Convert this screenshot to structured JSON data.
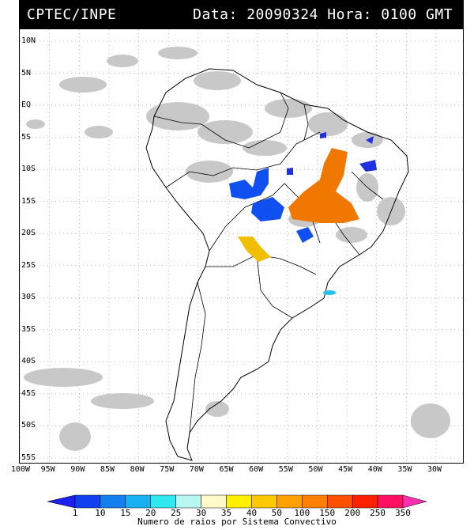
{
  "header": {
    "source": "CPTEC/INPE",
    "data_label": "Data:",
    "date": "20090324",
    "hora_label": "Hora:",
    "time": "0100",
    "tz": "GMT"
  },
  "map": {
    "lat_labels": [
      "10N",
      "5N",
      "EQ",
      "5S",
      "10S",
      "15S",
      "20S",
      "25S",
      "30S",
      "35S",
      "40S",
      "45S",
      "50S",
      "55S"
    ],
    "lon_labels": [
      "100W",
      "95W",
      "90W",
      "85W",
      "80W",
      "75W",
      "70W",
      "65W",
      "60W",
      "55W",
      "50W",
      "45W",
      "40W",
      "35W",
      "30W"
    ],
    "lat_values": [
      10,
      5,
      0,
      -5,
      -10,
      -15,
      -20,
      -25,
      -30,
      -35,
      -40,
      -45,
      -50,
      -55
    ],
    "lon_values": [
      -100,
      -95,
      -90,
      -85,
      -80,
      -75,
      -70,
      -65,
      -60,
      -55,
      -50,
      -45,
      -40,
      -35,
      -30
    ],
    "gridline_style": "dotted",
    "land_outline_color": "#000000",
    "cloud_color": "#c8c8c8",
    "systems": [
      {
        "color": "#f07800",
        "bin": "150-200",
        "region": "central-brazil-east"
      },
      {
        "color": "#1050f0",
        "bin": "1-10",
        "region": "mato-grosso"
      },
      {
        "color": "#1050f0",
        "bin": "1-10",
        "region": "goias-west"
      },
      {
        "color": "#1050f0",
        "bin": "1-10",
        "region": "mato-grosso-sul"
      },
      {
        "color": "#1e30e0",
        "bin": "1",
        "region": "nordeste"
      },
      {
        "color": "#f0c000",
        "bin": "40-50",
        "region": "paraguay"
      },
      {
        "color": "#20c0f0",
        "bin": "20",
        "region": "rio-grande-do-sul-coast"
      }
    ]
  },
  "legend": {
    "title": "Numero de raios por Sistema Convectivo",
    "values": [
      "1",
      "10",
      "15",
      "20",
      "25",
      "30",
      "35",
      "40",
      "50",
      "100",
      "150",
      "200",
      "250",
      "350"
    ],
    "colors": [
      "#1e20f0",
      "#1040f0",
      "#1480f0",
      "#18b0f0",
      "#30e8f0",
      "#b8f8f0",
      "#fffac8",
      "#fff000",
      "#ffc800",
      "#ffa000",
      "#ff8000",
      "#ff5000",
      "#ff2000",
      "#ff1060",
      "#ff30b0"
    ]
  }
}
